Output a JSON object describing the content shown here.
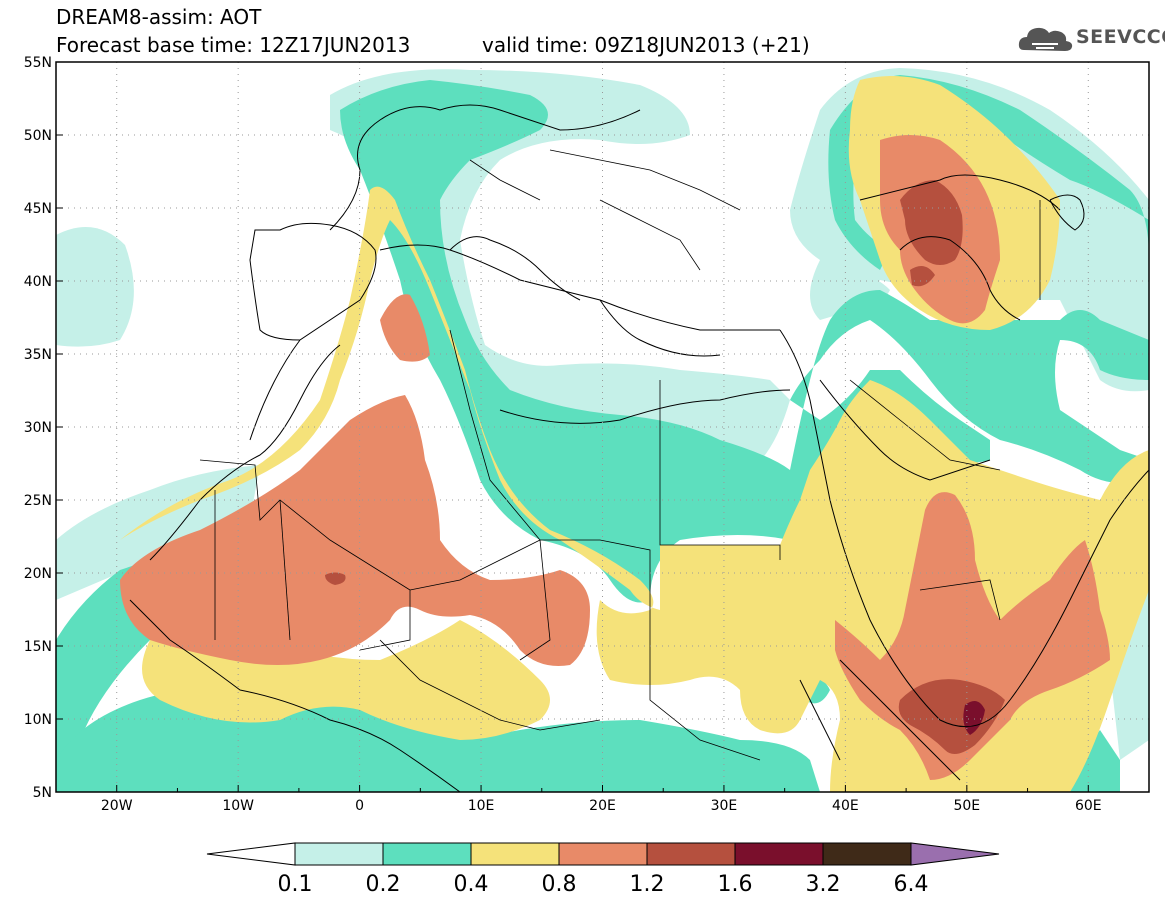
{
  "header": {
    "title": "DREAM8-assim: AOT",
    "forecast_base": "Forecast base time: 12Z17JUN2013",
    "valid_time": "valid time: 09Z18JUN2013 (+21)"
  },
  "logo": {
    "text": "SEEVCCC",
    "icon": "cloud-icon"
  },
  "map": {
    "lon_range": [
      -25,
      65
    ],
    "lat_range": [
      5,
      55
    ],
    "lon_ticks": [
      "20W",
      "10W",
      "0",
      "10E",
      "20E",
      "30E",
      "40E",
      "50E",
      "60E"
    ],
    "lat_ticks": [
      "55N",
      "50N",
      "45N",
      "40N",
      "35N",
      "30N",
      "25N",
      "20N",
      "15N",
      "10N",
      "5N"
    ],
    "grid": "dotted"
  },
  "colorbar": {
    "labels": [
      "0.1",
      "0.2",
      "0.4",
      "0.8",
      "1.2",
      "1.6",
      "3.2",
      "6.4"
    ],
    "colors": [
      "#c5f0e8",
      "#5ddfbe",
      "#f5e27a",
      "#e88a68",
      "#b5503e",
      "#7a0f2c",
      "#3f2a18"
    ],
    "under_color": "#ffffff",
    "over_color": "#9a6fae"
  },
  "palette": {
    "c1": "#c5f0e8",
    "c2": "#5ddfbe",
    "c3": "#f5e27a",
    "c4": "#e88a68",
    "c5": "#b5503e",
    "c6": "#7a0f2c"
  }
}
